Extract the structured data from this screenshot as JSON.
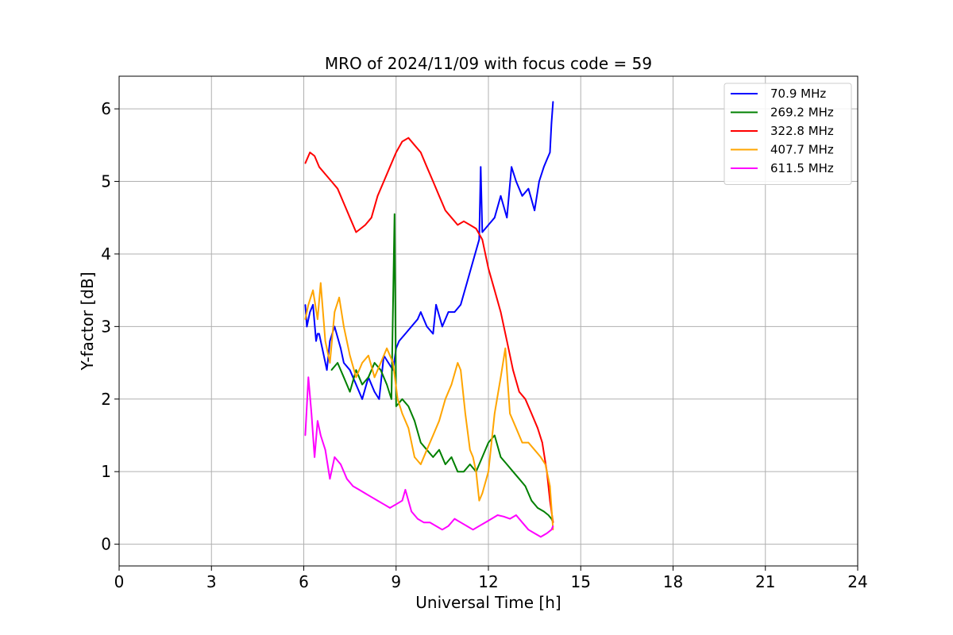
{
  "chart_data": {
    "type": "line",
    "title": "MRO of 2024/11/09 with focus code = 59",
    "xlabel": "Universal Time [h]",
    "ylabel": "Y-factor [dB]",
    "xlim": [
      0,
      24
    ],
    "ylim": [
      -0.3,
      6.45
    ],
    "xticks": [
      0,
      3,
      6,
      9,
      12,
      15,
      18,
      21,
      24
    ],
    "xtick_labels": [
      "0",
      "3",
      "6",
      "9",
      "12",
      "15",
      "18",
      "21",
      "24"
    ],
    "yticks": [
      0,
      1,
      2,
      3,
      4,
      5,
      6
    ],
    "ytick_labels": [
      "0",
      "1",
      "2",
      "3",
      "4",
      "5",
      "6"
    ],
    "grid": true,
    "legend_position": "top-right",
    "series": [
      {
        "name": " 70.9 MHz",
        "color": "#0000ff",
        "x": [
          6.05,
          6.1,
          6.2,
          6.3,
          6.4,
          6.45,
          6.5,
          6.6,
          6.75,
          6.85,
          7.0,
          7.2,
          7.3,
          7.5,
          7.7,
          7.9,
          8.1,
          8.3,
          8.45,
          8.5,
          8.6,
          8.75,
          8.9,
          9.0,
          9.1,
          9.3,
          9.5,
          9.7,
          9.8,
          10.0,
          10.2,
          10.3,
          10.5,
          10.7,
          10.9,
          11.1,
          11.3,
          11.5,
          11.7,
          11.75,
          11.8,
          12.0,
          12.2,
          12.4,
          12.6,
          12.75,
          12.9,
          13.1,
          13.3,
          13.5,
          13.65,
          13.8,
          13.9,
          14.0,
          14.05,
          14.1
        ],
        "values": [
          3.3,
          3.0,
          3.2,
          3.3,
          2.8,
          2.9,
          2.9,
          2.7,
          2.4,
          2.8,
          3.0,
          2.7,
          2.5,
          2.4,
          2.2,
          2.0,
          2.3,
          2.1,
          2.0,
          2.2,
          2.6,
          2.5,
          2.4,
          2.7,
          2.8,
          2.9,
          3.0,
          3.1,
          3.2,
          3.0,
          2.9,
          3.3,
          3.0,
          3.2,
          3.2,
          3.3,
          3.6,
          3.9,
          4.2,
          5.2,
          4.3,
          4.4,
          4.5,
          4.8,
          4.5,
          5.2,
          5.0,
          4.8,
          4.9,
          4.6,
          5.0,
          5.2,
          5.3,
          5.4,
          5.8,
          6.1
        ]
      },
      {
        "name": "269.2 MHz",
        "color": "#008000",
        "x": [
          6.9,
          7.1,
          7.3,
          7.5,
          7.7,
          7.9,
          8.1,
          8.3,
          8.5,
          8.7,
          8.85,
          8.95,
          9.0,
          9.2,
          9.4,
          9.6,
          9.8,
          10.0,
          10.2,
          10.4,
          10.6,
          10.8,
          11.0,
          11.2,
          11.4,
          11.6,
          11.8,
          12.0,
          12.2,
          12.4,
          12.6,
          12.8,
          13.0,
          13.2,
          13.4,
          13.6,
          13.8,
          13.95,
          14.05,
          14.1
        ],
        "values": [
          2.4,
          2.5,
          2.3,
          2.1,
          2.4,
          2.2,
          2.3,
          2.5,
          2.4,
          2.2,
          2.0,
          4.55,
          1.9,
          2.0,
          1.9,
          1.7,
          1.4,
          1.3,
          1.2,
          1.3,
          1.1,
          1.2,
          1.0,
          1.0,
          1.1,
          1.0,
          1.2,
          1.4,
          1.5,
          1.2,
          1.1,
          1.0,
          0.9,
          0.8,
          0.6,
          0.5,
          0.45,
          0.4,
          0.35,
          0.3
        ]
      },
      {
        "name": "322.8 MHz",
        "color": "#ff0000",
        "x": [
          6.05,
          6.2,
          6.35,
          6.5,
          6.7,
          6.9,
          7.1,
          7.3,
          7.5,
          7.7,
          7.85,
          8.0,
          8.2,
          8.4,
          8.6,
          8.8,
          9.0,
          9.2,
          9.4,
          9.6,
          9.8,
          10.0,
          10.2,
          10.4,
          10.6,
          10.8,
          11.0,
          11.2,
          11.4,
          11.6,
          11.8,
          12.0,
          12.2,
          12.4,
          12.6,
          12.8,
          13.0,
          13.2,
          13.4,
          13.6,
          13.75,
          13.9,
          14.0,
          14.1
        ],
        "values": [
          5.25,
          5.4,
          5.35,
          5.2,
          5.1,
          5.0,
          4.9,
          4.7,
          4.5,
          4.3,
          4.35,
          4.4,
          4.5,
          4.8,
          5.0,
          5.2,
          5.4,
          5.55,
          5.6,
          5.5,
          5.4,
          5.2,
          5.0,
          4.8,
          4.6,
          4.5,
          4.4,
          4.45,
          4.4,
          4.35,
          4.2,
          3.8,
          3.5,
          3.2,
          2.8,
          2.4,
          2.1,
          2.0,
          1.8,
          1.6,
          1.4,
          1.0,
          0.6,
          0.3
        ]
      },
      {
        "name": "407.7 MHz",
        "color": "#ffa500",
        "x": [
          6.05,
          6.15,
          6.3,
          6.45,
          6.55,
          6.7,
          6.85,
          7.0,
          7.15,
          7.3,
          7.5,
          7.7,
          7.9,
          8.1,
          8.3,
          8.5,
          8.7,
          8.9,
          9.05,
          9.2,
          9.4,
          9.6,
          9.8,
          10.0,
          10.2,
          10.4,
          10.6,
          10.8,
          11.0,
          11.1,
          11.25,
          11.4,
          11.5,
          11.6,
          11.7,
          11.8,
          12.0,
          12.2,
          12.4,
          12.55,
          12.7,
          12.9,
          13.1,
          13.3,
          13.5,
          13.7,
          13.85,
          14.0,
          14.1
        ],
        "values": [
          3.1,
          3.3,
          3.5,
          3.1,
          3.6,
          2.8,
          2.5,
          3.2,
          3.4,
          3.0,
          2.6,
          2.3,
          2.5,
          2.6,
          2.3,
          2.5,
          2.7,
          2.5,
          2.0,
          1.8,
          1.6,
          1.2,
          1.1,
          1.3,
          1.5,
          1.7,
          2.0,
          2.2,
          2.5,
          2.4,
          1.8,
          1.3,
          1.2,
          1.0,
          0.6,
          0.7,
          1.0,
          1.8,
          2.3,
          2.7,
          1.8,
          1.6,
          1.4,
          1.4,
          1.3,
          1.2,
          1.1,
          0.8,
          0.2
        ]
      },
      {
        "name": "611.5 MHz",
        "color": "#ff00ff",
        "x": [
          6.05,
          6.15,
          6.25,
          6.35,
          6.45,
          6.55,
          6.7,
          6.85,
          7.0,
          7.2,
          7.4,
          7.6,
          7.8,
          8.0,
          8.2,
          8.4,
          8.6,
          8.8,
          9.0,
          9.2,
          9.3,
          9.5,
          9.7,
          9.9,
          10.1,
          10.3,
          10.5,
          10.7,
          10.9,
          11.1,
          11.3,
          11.5,
          11.7,
          11.9,
          12.1,
          12.3,
          12.5,
          12.7,
          12.9,
          13.1,
          13.3,
          13.5,
          13.7,
          13.9,
          14.05,
          14.1
        ],
        "values": [
          1.5,
          2.3,
          1.8,
          1.2,
          1.7,
          1.5,
          1.3,
          0.9,
          1.2,
          1.1,
          0.9,
          0.8,
          0.75,
          0.7,
          0.65,
          0.6,
          0.55,
          0.5,
          0.55,
          0.6,
          0.75,
          0.45,
          0.35,
          0.3,
          0.3,
          0.25,
          0.2,
          0.25,
          0.35,
          0.3,
          0.25,
          0.2,
          0.25,
          0.3,
          0.35,
          0.4,
          0.38,
          0.35,
          0.4,
          0.3,
          0.2,
          0.15,
          0.1,
          0.15,
          0.2,
          0.25
        ]
      }
    ]
  }
}
